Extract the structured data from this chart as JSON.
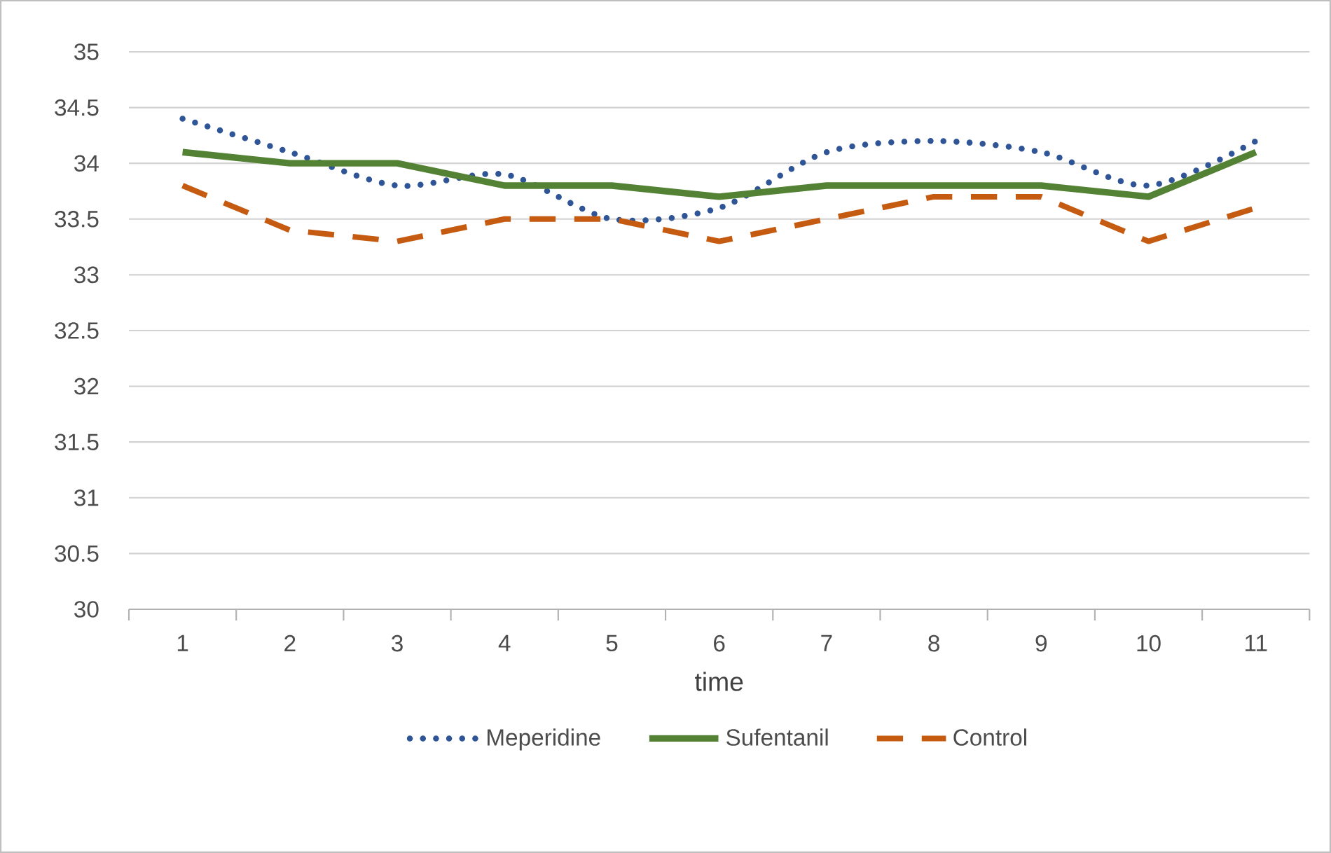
{
  "chart_data": {
    "type": "line",
    "xlabel": "time",
    "categories": [
      "1",
      "2",
      "3",
      "4",
      "5",
      "6",
      "7",
      "8",
      "9",
      "10",
      "11"
    ],
    "series": [
      {
        "name": "Meperidine",
        "color": "#2f5597",
        "line_style": "dotted",
        "values": [
          34.4,
          34.1,
          33.8,
          33.9,
          33.5,
          33.6,
          34.1,
          34.2,
          34.1,
          33.8,
          34.2
        ]
      },
      {
        "name": "Sufentanil",
        "color": "#548235",
        "line_style": "solid",
        "values": [
          34.1,
          34.0,
          34.0,
          33.8,
          33.8,
          33.7,
          33.8,
          33.8,
          33.8,
          33.7,
          34.1
        ]
      },
      {
        "name": "Control",
        "color": "#c55a11",
        "line_style": "dashed",
        "values": [
          33.8,
          33.4,
          33.3,
          33.5,
          33.5,
          33.3,
          33.5,
          33.7,
          33.7,
          33.3,
          33.6
        ]
      }
    ],
    "ylim": [
      30,
      35
    ],
    "yticks": [
      30,
      30.5,
      31,
      31.5,
      32,
      32.5,
      33,
      33.5,
      34,
      34.5,
      35
    ],
    "grid": "y",
    "legend": "bottom"
  }
}
